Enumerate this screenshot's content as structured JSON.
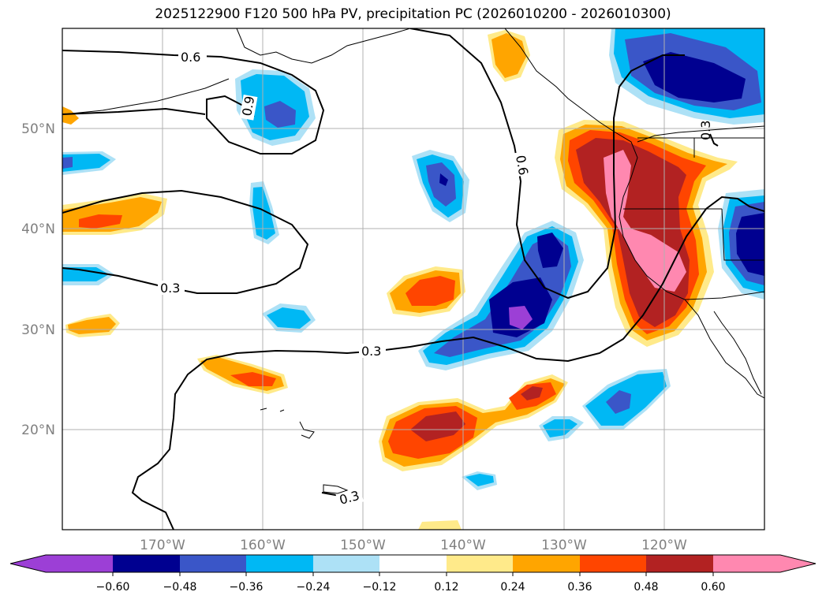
{
  "title": "2025122900 F120 500 hPa PV, precipitation PC (2026010200 - 2026010300)",
  "map": {
    "lat_labels": [
      "50°N",
      "40°N",
      "30°N",
      "20°N"
    ],
    "lon_labels": [
      "170°W",
      "160°W",
      "150°W",
      "140°W",
      "130°W",
      "120°W"
    ],
    "gridlines": true
  },
  "pv_contours": {
    "color": "#000000",
    "labels": [
      "0.6",
      "0.9",
      "0.6",
      "0.3",
      "0.3",
      "0.3",
      "0.3"
    ]
  },
  "colorbar": {
    "extend": "both",
    "ticks": [
      "−0.60",
      "−0.48",
      "−0.36",
      "−0.24",
      "−0.12",
      "0.12",
      "0.24",
      "0.36",
      "0.48",
      "0.60"
    ],
    "colors": [
      "#9c3fd6",
      "#000090",
      "#3a56c8",
      "#00b8f4",
      "#ade1f6",
      "#ffffff",
      "#ffea8a",
      "#ffa500",
      "#ff4500",
      "#b22222",
      "#ff88b0"
    ]
  }
}
